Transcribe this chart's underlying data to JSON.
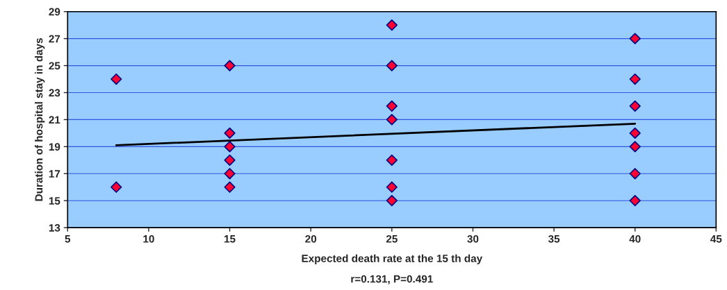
{
  "chart_data": {
    "type": "scatter",
    "xlabel": "Expected death rate at the 15 th day",
    "ylabel": "Duration of hospital stay in days",
    "annotations": [
      "r=0.131, P=0.491"
    ],
    "series": [
      {
        "color": "#ff0033",
        "marker": "diamond",
        "x": [
          8,
          8,
          15,
          15,
          15,
          15,
          15,
          15,
          25,
          25,
          25,
          25,
          25,
          25,
          25,
          40,
          40,
          40,
          40,
          40,
          40,
          40
        ],
        "values": [
          24,
          16,
          25,
          20,
          19,
          18,
          17,
          16,
          28,
          25,
          22,
          21,
          18,
          16,
          15,
          27,
          24,
          22,
          20,
          19,
          17,
          15
        ]
      },
      {
        "type": "line",
        "color": "#000000",
        "marker": "none",
        "x": [
          8,
          40
        ],
        "values": [
          19.1,
          20.7
        ]
      }
    ],
    "xlim": [
      5,
      45
    ],
    "xticks": [
      5,
      10,
      15,
      20,
      25,
      30,
      35,
      40,
      45
    ],
    "ylim": [
      13,
      29
    ],
    "yticks": [
      13,
      15,
      17,
      19,
      21,
      23,
      25,
      27,
      29
    ],
    "grid": "y"
  }
}
